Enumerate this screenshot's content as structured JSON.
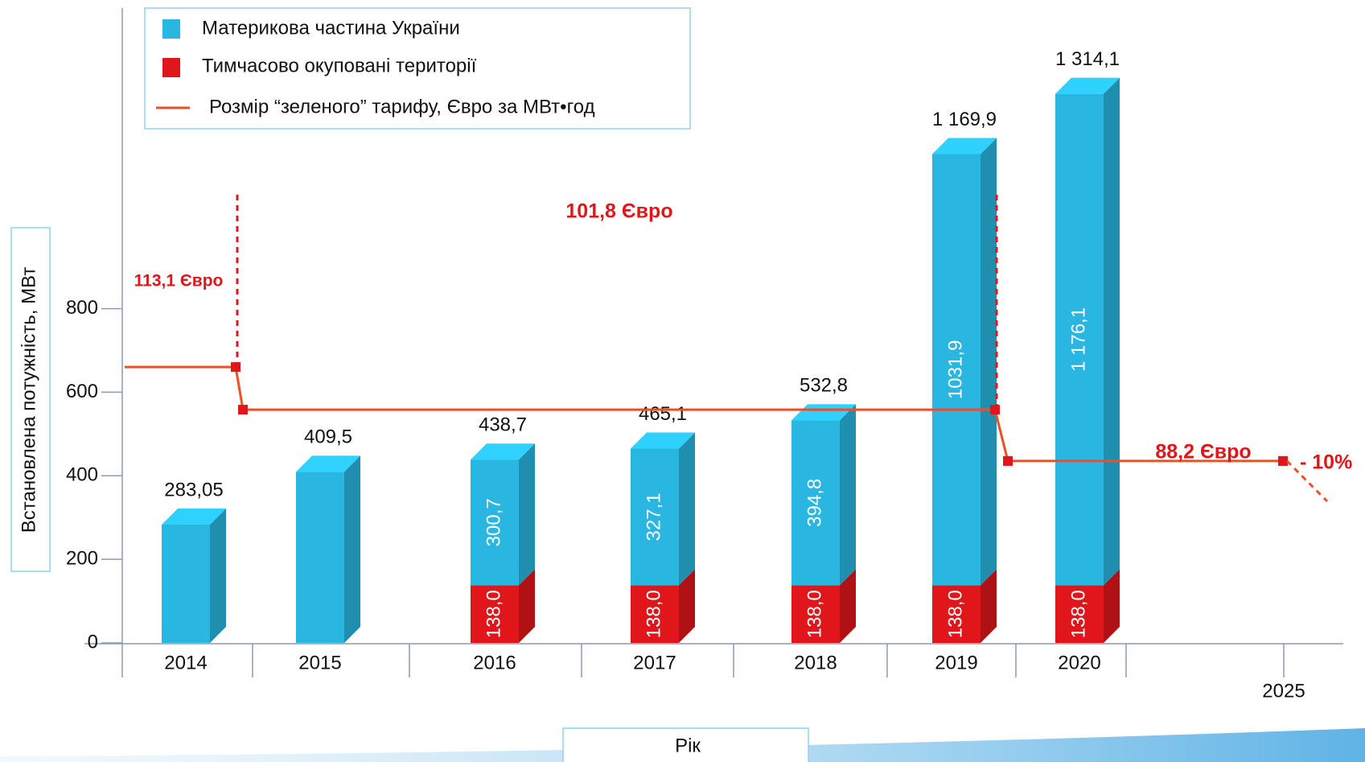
{
  "chart_data": {
    "type": "bar",
    "y_label": "Встановлена потужність, МВт",
    "x_label": "Рік",
    "categories": [
      "2014",
      "2015",
      "2016",
      "2017",
      "2018",
      "2019",
      "2020",
      "2025"
    ],
    "series": [
      {
        "name": "Тимчасово окуповані території",
        "color": "#e0161a",
        "values": [
          null,
          null,
          138.0,
          138.0,
          138.0,
          138.0,
          138.0,
          null
        ],
        "value_labels": [
          null,
          null,
          "138,0",
          "138,0",
          "138,0",
          "138,0",
          "138,0",
          null
        ]
      },
      {
        "name": "Материкова частина України",
        "color": "#29b6e0",
        "values": [
          283.05,
          409.5,
          300.7,
          327.1,
          394.8,
          1031.9,
          1176.1,
          null
        ],
        "value_labels": [
          null,
          null,
          "300,7",
          "327,1",
          "394,8",
          "1031,9",
          "1 176,1",
          null
        ]
      }
    ],
    "totals": {
      "values": [
        283.05,
        409.5,
        438.7,
        465.1,
        532.8,
        1169.9,
        1314.1,
        null
      ],
      "value_labels": [
        "283,05",
        "409,5",
        "438,7",
        "465,1",
        "532,8",
        "1 169,9",
        "1 314,1",
        null
      ]
    },
    "tariff": {
      "name": "Розмір “зеленого” тарифу, Євро за МВт•год",
      "color": "#f04e23",
      "axis": "y2",
      "values": [
        113.1,
        101.8,
        88.2
      ],
      "value_labels": [
        "113,1 Євро",
        "101,8 Євро",
        "88,2 Євро"
      ],
      "change_label": "- 10%"
    },
    "ylim": [
      0,
      1400
    ],
    "yticks": [
      0,
      200,
      400,
      600,
      800
    ],
    "y2lim": [
      40,
      195
    ]
  }
}
